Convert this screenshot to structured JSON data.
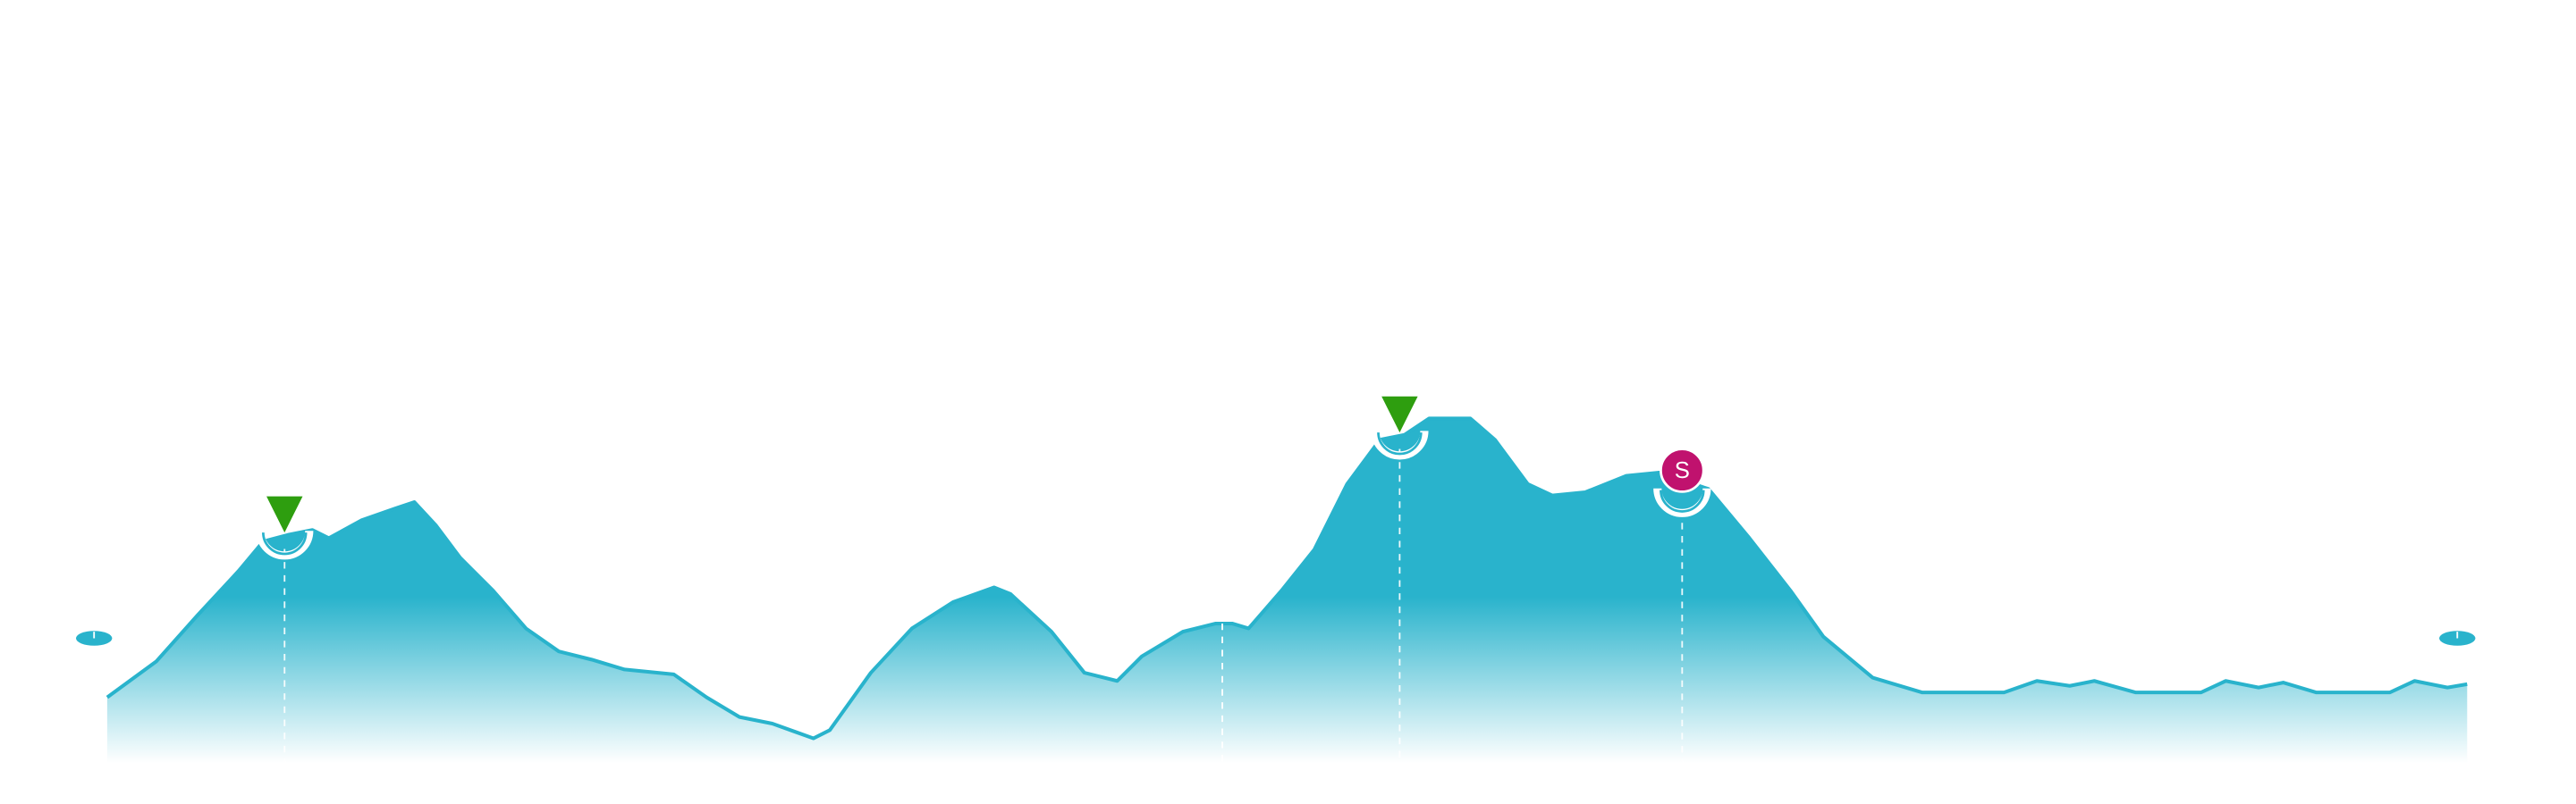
{
  "chart_data": {
    "type": "area",
    "x": [
      0,
      30,
      55,
      80,
      95,
      110,
      125,
      135,
      155,
      175,
      187,
      200,
      215,
      235,
      255,
      275,
      295,
      315,
      345,
      365,
      385,
      405,
      430,
      440,
      465,
      490,
      515,
      540,
      550,
      575,
      595,
      615,
      630,
      655,
      675,
      685,
      695,
      715,
      735,
      755,
      775,
      790,
      805,
      830,
      845,
      865,
      880,
      900,
      925,
      945,
      960,
      975,
      1000,
      1025,
      1045,
      1075,
      1105,
      1155,
      1175,
      1195,
      1210,
      1235,
      1275,
      1290,
      1310,
      1325,
      1345,
      1390,
      1405,
      1425,
      1437
    ],
    "values": [
      40,
      62,
      90,
      117,
      135,
      139,
      142,
      137,
      148,
      155,
      159,
      145,
      125,
      105,
      82,
      68,
      63,
      57,
      54,
      40,
      28,
      24,
      15,
      20,
      55,
      82,
      98,
      107,
      103,
      80,
      55,
      50,
      65,
      80,
      85,
      85,
      82,
      105,
      130,
      170,
      197,
      200,
      210,
      210,
      197,
      170,
      163,
      165,
      175,
      177,
      172,
      167,
      137,
      105,
      77,
      52,
      43,
      43,
      50,
      47,
      50,
      43,
      43,
      50,
      46,
      49,
      43,
      43,
      50,
      46,
      48
    ],
    "xlim": [
      0,
      1437
    ],
    "ylim": [
      0,
      465
    ],
    "color": "#29b3cc",
    "waypoints_x": [
      108,
      787
    ],
    "minor_waypoints_x": [
      679
    ],
    "waypoint_color": "#2e9e0f",
    "stop": {
      "x": 959,
      "label": "S",
      "color": "#c0126e"
    }
  }
}
